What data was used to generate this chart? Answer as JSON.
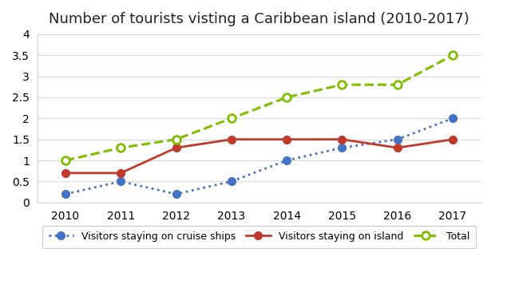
{
  "title": "Number of tourists visting a Caribbean island (2010-2017)",
  "years": [
    2010,
    2011,
    2012,
    2013,
    2014,
    2015,
    2016,
    2017
  ],
  "cruise_ships": [
    0.2,
    0.5,
    0.2,
    0.5,
    1.0,
    1.3,
    1.5,
    2.0
  ],
  "island": [
    0.7,
    0.7,
    1.3,
    1.5,
    1.5,
    1.5,
    1.3,
    1.5
  ],
  "total": [
    1.0,
    1.3,
    1.5,
    2.0,
    2.5,
    2.8,
    2.8,
    3.5
  ],
  "cruise_color": "#4472c4",
  "island_color": "#c0392b",
  "total_color": "#7fbf00",
  "ylim": [
    0,
    4
  ],
  "yticks": [
    0,
    0.5,
    1.0,
    1.5,
    2.0,
    2.5,
    3.0,
    3.5,
    4.0
  ],
  "legend_cruise": "Visitors staying on cruise ships",
  "legend_island": "Visitors staying on island",
  "legend_total": "Total",
  "bg_color": "#ffffff",
  "grid_color": "#d9d9d9",
  "spine_color": "#d0d0d0"
}
